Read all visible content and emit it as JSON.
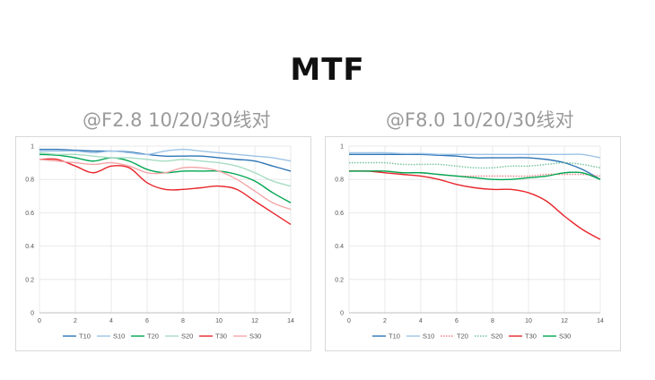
{
  "page": {
    "title": "MTF"
  },
  "chart_data": [
    {
      "type": "line",
      "title": "@F2.8 10/20/30线对",
      "x": [
        0,
        1,
        2,
        3,
        4,
        5,
        6,
        7,
        8,
        9,
        10,
        11,
        12,
        13,
        14
      ],
      "xlim": [
        0,
        14
      ],
      "ylim": [
        0,
        1
      ],
      "xticks": [
        0,
        2,
        4,
        6,
        8,
        10,
        12,
        14
      ],
      "yticks": [
        0,
        0.2,
        0.4,
        0.6,
        0.8,
        1
      ],
      "ytick_labels": [
        "0",
        "0.2",
        "0.4",
        "0.6",
        "0.8",
        "1"
      ],
      "grid": true,
      "legend_position": "bottom",
      "series": [
        {
          "name": "T10",
          "color": "#2e75b6",
          "dash": "solid",
          "values": [
            0.98,
            0.98,
            0.975,
            0.97,
            0.97,
            0.965,
            0.95,
            0.94,
            0.94,
            0.94,
            0.93,
            0.92,
            0.91,
            0.88,
            0.85
          ]
        },
        {
          "name": "S10",
          "color": "#9dc3e6",
          "dash": "solid",
          "values": [
            0.97,
            0.97,
            0.97,
            0.96,
            0.97,
            0.96,
            0.95,
            0.97,
            0.98,
            0.97,
            0.96,
            0.95,
            0.94,
            0.93,
            0.91
          ]
        },
        {
          "name": "T20",
          "color": "#00a651",
          "dash": "solid",
          "values": [
            0.95,
            0.945,
            0.93,
            0.91,
            0.93,
            0.91,
            0.86,
            0.84,
            0.85,
            0.85,
            0.85,
            0.83,
            0.79,
            0.72,
            0.66
          ]
        },
        {
          "name": "S20",
          "color": "#a8dcc4",
          "dash": "solid",
          "values": [
            0.96,
            0.95,
            0.95,
            0.94,
            0.93,
            0.93,
            0.92,
            0.91,
            0.92,
            0.91,
            0.9,
            0.88,
            0.84,
            0.79,
            0.76
          ]
        },
        {
          "name": "T30",
          "color": "#e8262b",
          "dash": "solid",
          "values": [
            0.92,
            0.92,
            0.88,
            0.84,
            0.88,
            0.87,
            0.78,
            0.74,
            0.74,
            0.75,
            0.76,
            0.74,
            0.67,
            0.6,
            0.53
          ]
        },
        {
          "name": "S30",
          "color": "#f4a6a8",
          "dash": "solid",
          "values": [
            0.92,
            0.91,
            0.9,
            0.89,
            0.9,
            0.88,
            0.84,
            0.84,
            0.87,
            0.87,
            0.85,
            0.8,
            0.73,
            0.66,
            0.62
          ]
        }
      ]
    },
    {
      "type": "line",
      "title": "@F8.0 10/20/30线对",
      "x": [
        0,
        1,
        2,
        3,
        4,
        5,
        6,
        7,
        8,
        9,
        10,
        11,
        12,
        13,
        14
      ],
      "xlim": [
        0,
        14
      ],
      "ylim": [
        0,
        1
      ],
      "xticks": [
        0,
        2,
        4,
        6,
        8,
        10,
        12,
        14
      ],
      "yticks": [
        0,
        0.2,
        0.4,
        0.6,
        0.8,
        1
      ],
      "ytick_labels": [
        "0",
        "0.2",
        "0.4",
        "0.6",
        "0.8",
        "1"
      ],
      "grid": true,
      "legend_position": "bottom",
      "series": [
        {
          "name": "T10",
          "color": "#2e75b6",
          "dash": "solid",
          "values": [
            0.95,
            0.95,
            0.95,
            0.95,
            0.95,
            0.945,
            0.94,
            0.93,
            0.93,
            0.93,
            0.93,
            0.92,
            0.9,
            0.86,
            0.8
          ]
        },
        {
          "name": "S10",
          "color": "#9dc3e6",
          "dash": "solid",
          "values": [
            0.96,
            0.96,
            0.96,
            0.955,
            0.955,
            0.95,
            0.95,
            0.95,
            0.95,
            0.95,
            0.95,
            0.95,
            0.95,
            0.95,
            0.93
          ]
        },
        {
          "name": "T20",
          "color": "#f08080",
          "dash": "dotted",
          "values": [
            0.85,
            0.85,
            0.85,
            0.84,
            0.84,
            0.83,
            0.82,
            0.82,
            0.82,
            0.82,
            0.82,
            0.83,
            0.83,
            0.83,
            0.82
          ]
        },
        {
          "name": "S20",
          "color": "#70c29b",
          "dash": "dotted",
          "values": [
            0.9,
            0.9,
            0.9,
            0.89,
            0.89,
            0.89,
            0.88,
            0.87,
            0.87,
            0.88,
            0.88,
            0.89,
            0.9,
            0.89,
            0.87
          ]
        },
        {
          "name": "T30",
          "color": "#e8262b",
          "dash": "solid",
          "values": [
            0.85,
            0.85,
            0.84,
            0.83,
            0.82,
            0.8,
            0.77,
            0.75,
            0.74,
            0.74,
            0.72,
            0.67,
            0.58,
            0.5,
            0.44
          ]
        },
        {
          "name": "S30",
          "color": "#00a651",
          "dash": "solid",
          "values": [
            0.85,
            0.85,
            0.85,
            0.84,
            0.84,
            0.83,
            0.82,
            0.81,
            0.8,
            0.8,
            0.81,
            0.82,
            0.84,
            0.84,
            0.8
          ]
        }
      ]
    }
  ]
}
